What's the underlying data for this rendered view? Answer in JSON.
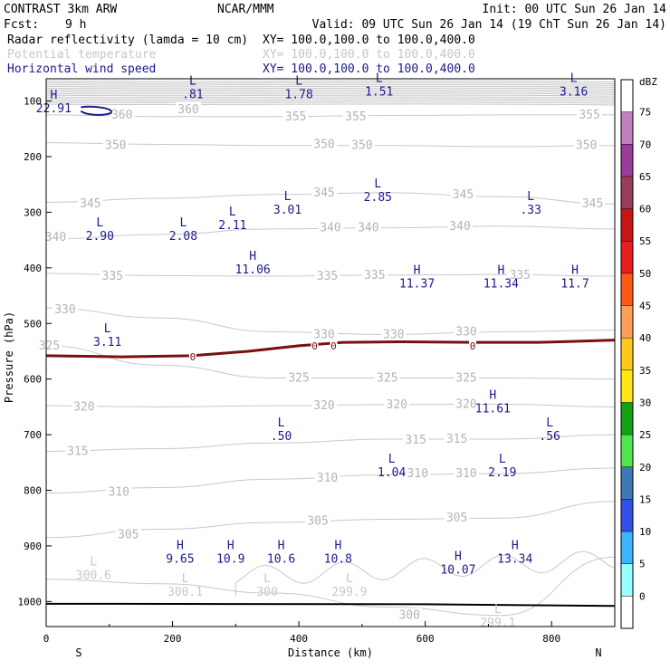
{
  "header": {
    "line1_left": "CONTRAST  3km ARW",
    "line1_mid": "NCAR/MMM",
    "line1_right": "Init: 00 UTC Sun 26 Jan 14",
    "line2_fcst_label": "Fcst:",
    "line2_fcst_value": "9 h",
    "line2_valid": "Valid: 09 UTC Sun 26 Jan 14 (19 ChT Sun 26 Jan 14)",
    "fields": [
      {
        "name": "Radar reflectivity (lamda = 10 cm)",
        "xy": "XY= 100.0,100.0 to 100.0,400.0",
        "color": "#000000"
      },
      {
        "name": "Potential temperature",
        "xy": "XY= 100.0,100.0 to 100.0,400.0",
        "color": "#c8c8c8"
      },
      {
        "name": "Horizontal wind speed",
        "xy": "XY= 100.0,100.0 to 100.0,400.0",
        "color": "#1a1a8c"
      }
    ]
  },
  "chart_data": {
    "type": "cross-section contour",
    "xlabel": "Distance (km)",
    "ylabel": "Pressure (hPa)",
    "xlim": [
      0,
      900
    ],
    "ylim": [
      1045,
      60
    ],
    "x_ticks": [
      0,
      200,
      400,
      600,
      800
    ],
    "y_ticks": [
      100,
      200,
      300,
      400,
      500,
      600,
      700,
      800,
      900,
      1000
    ],
    "x_end_labels": {
      "left": "S",
      "right": "N"
    },
    "theta_labels": [
      {
        "text": "360",
        "x": 225,
        "p": 115
      },
      {
        "text": "360",
        "x": 120,
        "p": 125
      },
      {
        "text": "355",
        "x": 395,
        "p": 128
      },
      {
        "text": "355",
        "x": 490,
        "p": 128
      },
      {
        "text": "355",
        "x": 860,
        "p": 125
      },
      {
        "text": "350",
        "x": 110,
        "p": 180
      },
      {
        "text": "350",
        "x": 440,
        "p": 178
      },
      {
        "text": "350",
        "x": 500,
        "p": 180
      },
      {
        "text": "350",
        "x": 855,
        "p": 180
      },
      {
        "text": "345",
        "x": 70,
        "p": 285
      },
      {
        "text": "345",
        "x": 440,
        "p": 265
      },
      {
        "text": "345",
        "x": 660,
        "p": 268
      },
      {
        "text": "345",
        "x": 865,
        "p": 285
      },
      {
        "text": "340",
        "x": 15,
        "p": 345
      },
      {
        "text": "340",
        "x": 450,
        "p": 328
      },
      {
        "text": "340",
        "x": 510,
        "p": 328
      },
      {
        "text": "340",
        "x": 655,
        "p": 325
      },
      {
        "text": "335",
        "x": 105,
        "p": 415
      },
      {
        "text": "335",
        "x": 445,
        "p": 415
      },
      {
        "text": "335",
        "x": 520,
        "p": 413
      },
      {
        "text": "335",
        "x": 750,
        "p": 413
      },
      {
        "text": "330",
        "x": 30,
        "p": 475
      },
      {
        "text": "330",
        "x": 440,
        "p": 520
      },
      {
        "text": "330",
        "x": 550,
        "p": 520
      },
      {
        "text": "330",
        "x": 665,
        "p": 515
      },
      {
        "text": "325",
        "x": 5,
        "p": 540
      },
      {
        "text": "325",
        "x": 400,
        "p": 598
      },
      {
        "text": "325",
        "x": 540,
        "p": 598
      },
      {
        "text": "325",
        "x": 665,
        "p": 598
      },
      {
        "text": "320",
        "x": 60,
        "p": 650
      },
      {
        "text": "320",
        "x": 440,
        "p": 648
      },
      {
        "text": "320",
        "x": 555,
        "p": 646
      },
      {
        "text": "320",
        "x": 665,
        "p": 645
      },
      {
        "text": "315",
        "x": 50,
        "p": 730
      },
      {
        "text": "315",
        "x": 585,
        "p": 710
      },
      {
        "text": "315",
        "x": 650,
        "p": 708
      },
      {
        "text": "310",
        "x": 115,
        "p": 803
      },
      {
        "text": "310",
        "x": 445,
        "p": 778
      },
      {
        "text": "310",
        "x": 588,
        "p": 770
      },
      {
        "text": "310",
        "x": 665,
        "p": 770
      },
      {
        "text": "305",
        "x": 130,
        "p": 880
      },
      {
        "text": "305",
        "x": 430,
        "p": 855
      },
      {
        "text": "305",
        "x": 650,
        "p": 850
      },
      {
        "text": "300",
        "x": 575,
        "p": 1025
      }
    ],
    "zero_dbz_labels": [
      {
        "text": "0",
        "x": 232,
        "p": 560
      },
      {
        "text": "0",
        "x": 425,
        "p": 540
      },
      {
        "text": "0",
        "x": 455,
        "p": 540
      },
      {
        "text": "0",
        "x": 675,
        "p": 540
      }
    ],
    "pressure_centers": [
      {
        "type": "L",
        "value": "300.6",
        "x": 75,
        "p": 955,
        "color": "#c8c8c8"
      },
      {
        "type": "L",
        "value": "300.1",
        "x": 220,
        "p": 985,
        "color": "#c8c8c8"
      },
      {
        "type": "L",
        "value": "300",
        "x": 350,
        "p": 985,
        "color": "#c8c8c8"
      },
      {
        "type": "L",
        "value": "299.9",
        "x": 480,
        "p": 985,
        "color": "#c8c8c8"
      },
      {
        "type": "L",
        "value": "299.1",
        "x": 715,
        "p": 1040,
        "color": "#c8c8c8"
      }
    ],
    "wind_centers": [
      {
        "type": "L",
        "value": ".81",
        "x": 232,
        "p": 90
      },
      {
        "type": "L",
        "value": "1.78",
        "x": 400,
        "p": 90
      },
      {
        "type": "L",
        "value": "1.51",
        "x": 527,
        "p": 85
      },
      {
        "type": "L",
        "value": "3.16",
        "x": 835,
        "p": 85
      },
      {
        "type": "H",
        "value": "22.91",
        "x": 12,
        "p": 115
      },
      {
        "type": "L",
        "value": "3.01",
        "x": 382,
        "p": 298
      },
      {
        "type": "L",
        "value": "2.85",
        "x": 525,
        "p": 275
      },
      {
        "type": "L",
        "value": ".33",
        "x": 767,
        "p": 298
      },
      {
        "type": "L",
        "value": "2.90",
        "x": 85,
        "p": 345
      },
      {
        "type": "L",
        "value": "2.08",
        "x": 217,
        "p": 345
      },
      {
        "type": "L",
        "value": "2.11",
        "x": 295,
        "p": 325
      },
      {
        "type": "H",
        "value": "11.06",
        "x": 327,
        "p": 405
      },
      {
        "type": "H",
        "value": "11.37",
        "x": 587,
        "p": 430
      },
      {
        "type": "H",
        "value": "11.34",
        "x": 720,
        "p": 430
      },
      {
        "type": "H",
        "value": "11.7",
        "x": 837,
        "p": 430
      },
      {
        "type": "L",
        "value": "3.11",
        "x": 97,
        "p": 535
      },
      {
        "type": "H",
        "value": "11.61",
        "x": 707,
        "p": 655
      },
      {
        "type": "L",
        "value": ".50",
        "x": 372,
        "p": 705
      },
      {
        "type": "L",
        "value": ".56",
        "x": 797,
        "p": 705
      },
      {
        "type": "L",
        "value": "1.04",
        "x": 547,
        "p": 770
      },
      {
        "type": "L",
        "value": "2.19",
        "x": 722,
        "p": 770
      },
      {
        "type": "H",
        "value": "9.65",
        "x": 212,
        "p": 925
      },
      {
        "type": "H",
        "value": "10.9",
        "x": 292,
        "p": 925
      },
      {
        "type": "H",
        "value": "10.6",
        "x": 372,
        "p": 925
      },
      {
        "type": "H",
        "value": "10.8",
        "x": 462,
        "p": 925
      },
      {
        "type": "H",
        "value": "10.07",
        "x": 652,
        "p": 945
      },
      {
        "type": "H",
        "value": "13.34",
        "x": 742,
        "p": 925
      }
    ],
    "colorbar": {
      "unit": "dBZ",
      "labels": [
        "75",
        "70",
        "65",
        "60",
        "55",
        "50",
        "45",
        "40",
        "35",
        "30",
        "25",
        "20",
        "15",
        "10",
        "5",
        "0"
      ],
      "colors": [
        "#ffffff",
        "#c080c0",
        "#9a3c9a",
        "#983c5a",
        "#c81414",
        "#e81e1e",
        "#ff5a14",
        "#ffa05a",
        "#ffc81e",
        "#ffe614",
        "#14a014",
        "#50e650",
        "#3c78b4",
        "#3250e6",
        "#3cb4ff",
        "#96ffff",
        "#ffffff"
      ]
    }
  }
}
